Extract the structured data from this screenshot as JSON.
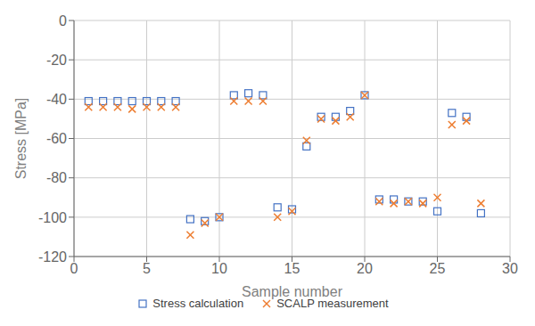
{
  "chart_data": {
    "type": "scatter",
    "xlabel": "Sample number",
    "ylabel": "Stress [MPa]",
    "xlim": [
      0,
      30
    ],
    "ylim": [
      -120,
      0
    ],
    "xticks": [
      0,
      5,
      10,
      15,
      20,
      25,
      30
    ],
    "yticks": [
      0,
      -20,
      -40,
      -60,
      -80,
      -100,
      -120
    ],
    "grid": true,
    "legend": "bottom",
    "series": [
      {
        "name": "Stress calculation",
        "color": "#4472c4",
        "marker": "square",
        "x": [
          1,
          2,
          3,
          4,
          5,
          6,
          7,
          8,
          9,
          10,
          11,
          12,
          13,
          14,
          15,
          16,
          17,
          18,
          19,
          20,
          21,
          22,
          23,
          24,
          25,
          26,
          27,
          28
        ],
        "values": [
          -41,
          -41,
          -41,
          -41,
          -41,
          -41,
          -41,
          -101,
          -102,
          -100,
          -38,
          -37,
          -38,
          -95,
          -96,
          -64,
          -49,
          -49,
          -46,
          -38,
          -91,
          -91,
          -92,
          -92,
          -97,
          -47,
          -49,
          -98
        ]
      },
      {
        "name": "SCALP measurement",
        "color": "#ed7d31",
        "marker": "x",
        "x": [
          1,
          2,
          3,
          4,
          5,
          6,
          7,
          8,
          9,
          10,
          11,
          12,
          13,
          14,
          15,
          16,
          17,
          18,
          19,
          20,
          21,
          22,
          23,
          24,
          25,
          26,
          27,
          28
        ],
        "values": [
          -44,
          -44,
          -44,
          -45,
          -44,
          -44,
          -44,
          -109,
          -103,
          -100,
          -41,
          -41,
          -41,
          -100,
          -97,
          -61,
          -50,
          -51,
          -49,
          -38,
          -92,
          -93,
          -92,
          -93,
          -90,
          -53,
          -51,
          -93
        ]
      }
    ]
  }
}
